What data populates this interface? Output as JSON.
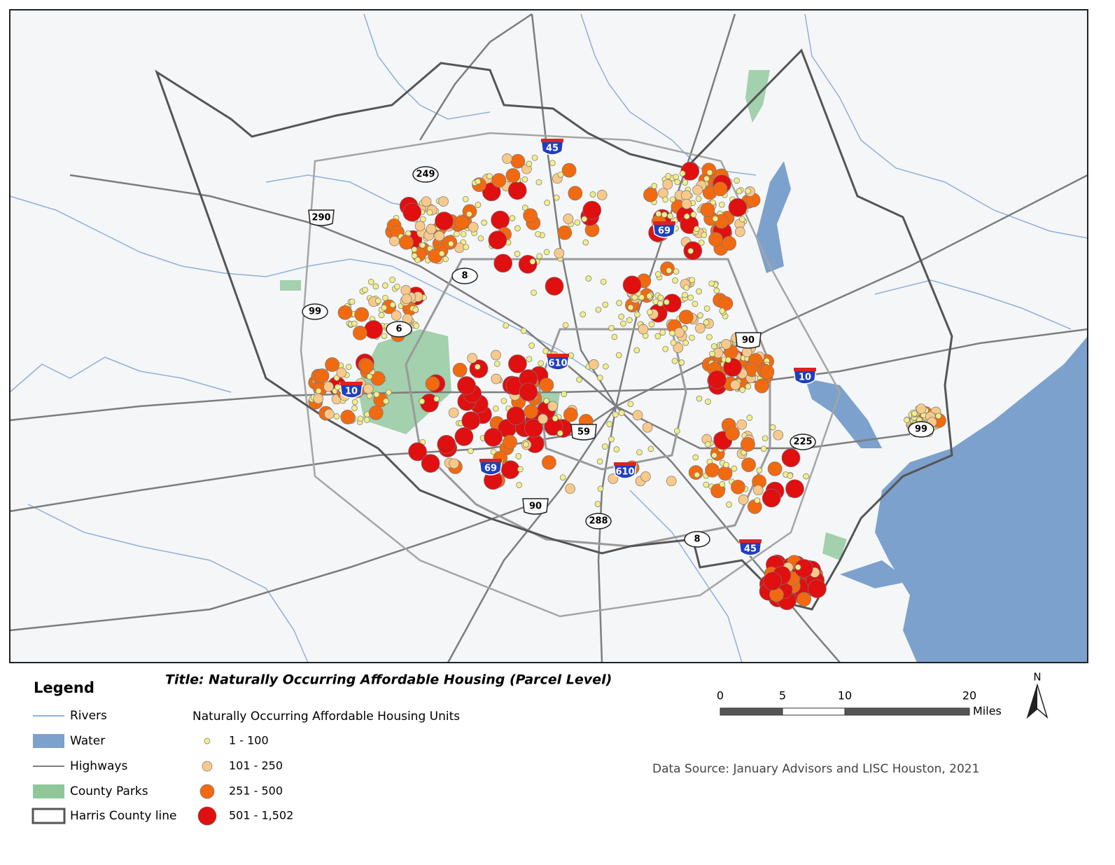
{
  "title": "Title: Naturally Occurring Affordable Housing (Parcel Level)",
  "legend": {
    "heading": "Legend",
    "items": [
      "Rivers",
      "Water",
      "Highways",
      "County Parks",
      "Harris County line"
    ]
  },
  "units_legend": {
    "heading": "Naturally Occurring Affordable Housing Units",
    "classes": [
      "1 - 100",
      "101 - 250",
      "251 - 500",
      "501 - 1,502"
    ]
  },
  "scale_bar": {
    "ticks": [
      0,
      5,
      10,
      20
    ],
    "unit": "Miles"
  },
  "north_arrow": "N",
  "source": "Data Source: January Advisors and LISC Houston, 2021",
  "interstate_shields": [
    "45",
    "69",
    "610",
    "10",
    "10",
    "69",
    "610",
    "45"
  ],
  "us_shields": [
    "290",
    "59",
    "90",
    "90"
  ],
  "state_shields": [
    "249",
    "8",
    "99",
    "6",
    "225",
    "99",
    "288",
    "8"
  ]
}
